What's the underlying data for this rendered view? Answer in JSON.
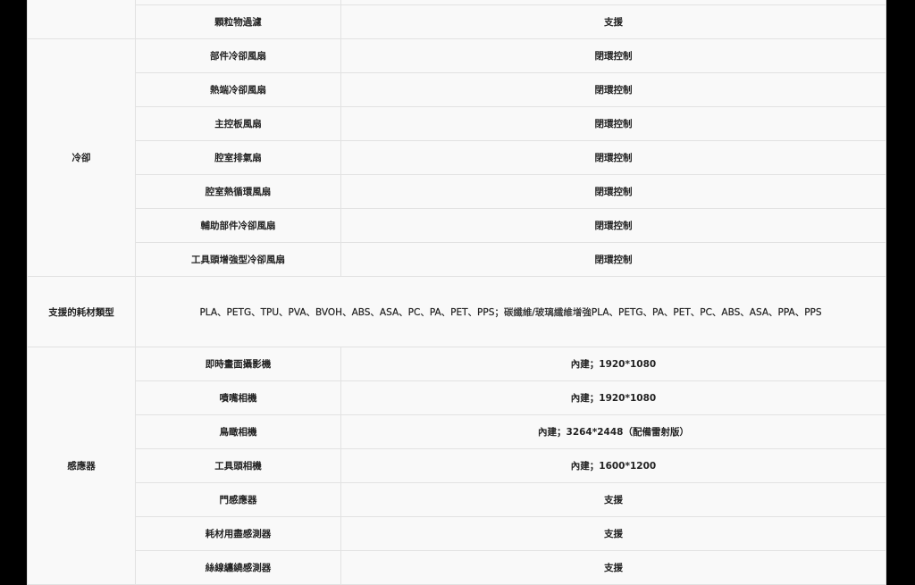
{
  "sections": [
    {
      "category": "",
      "rows": [
        {
          "item": "",
          "value": ""
        },
        {
          "item": "顆粒物過濾",
          "value": "支援"
        }
      ]
    },
    {
      "category": "冷卻",
      "rows": [
        {
          "item": "部件冷卻風扇",
          "value": "閉環控制"
        },
        {
          "item": "熱端冷卻風扇",
          "value": "閉環控制"
        },
        {
          "item": "主控板風扇",
          "value": "閉環控制"
        },
        {
          "item": "腔室排氣扇",
          "value": "閉環控制"
        },
        {
          "item": "腔室熱循環風扇",
          "value": "閉環控制"
        },
        {
          "item": "輔助部件冷卻風扇",
          "value": "閉環控制"
        },
        {
          "item": "工具頭增強型冷卻風扇",
          "value": "閉環控制"
        }
      ]
    },
    {
      "category": "支援的耗材類型",
      "value": "PLA、PETG、TPU、PVA、BVOH、ABS、ASA、PC、PA、PET、PPS；碳纖維/玻璃纖維增強PLA、PETG、PA、PET、PC、ABS、ASA、PPA、PPS"
    },
    {
      "category": "感應器",
      "rows": [
        {
          "item": "即時畫面攝影機",
          "value": "內建；1920*1080"
        },
        {
          "item": "噴嘴相機",
          "value": "內建；1920*1080"
        },
        {
          "item": "鳥瞰相機",
          "value": "內建；3264*2448（配備雷射版）"
        },
        {
          "item": "工具頭相機",
          "value": "內建；1600*1200"
        },
        {
          "item": "門感應器",
          "value": "支援"
        },
        {
          "item": "耗材用盡感測器",
          "value": "支援"
        },
        {
          "item": "絲線纏繞感測器",
          "value": "支援"
        }
      ]
    }
  ]
}
